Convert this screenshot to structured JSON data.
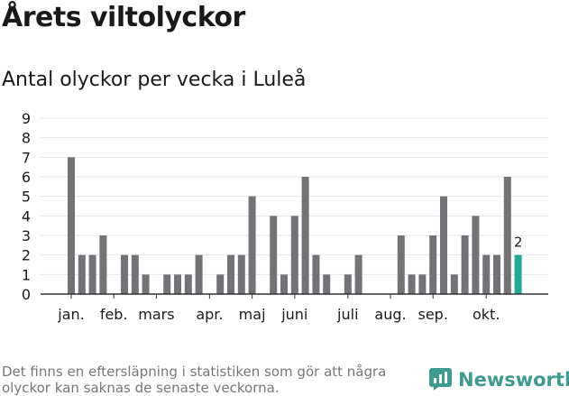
{
  "header": {
    "title": "Årets viltolyckor",
    "subtitle": "Antal olyckor per vecka i Luleå"
  },
  "chart_data": {
    "type": "bar",
    "title": "Årets viltolyckor",
    "subtitle": "Antal olyckor per vecka i Luleå",
    "xlabel": "",
    "ylabel": "",
    "ylim": [
      0,
      9
    ],
    "y_ticks": [
      0,
      1,
      2,
      3,
      4,
      5,
      6,
      7,
      8,
      9
    ],
    "grid": true,
    "values": [
      7,
      2,
      2,
      3,
      0,
      2,
      2,
      1,
      0,
      1,
      1,
      1,
      2,
      0,
      1,
      2,
      2,
      5,
      0,
      4,
      1,
      4,
      6,
      2,
      1,
      0,
      1,
      2,
      0,
      0,
      0,
      3,
      1,
      1,
      3,
      5,
      1,
      3,
      4,
      2,
      2,
      6,
      2
    ],
    "month_labels": [
      {
        "label": "jan.",
        "week": 1
      },
      {
        "label": "feb.",
        "week": 5
      },
      {
        "label": "mars",
        "week": 9
      },
      {
        "label": "apr.",
        "week": 14
      },
      {
        "label": "maj",
        "week": 18
      },
      {
        "label": "juni",
        "week": 22
      },
      {
        "label": "juli",
        "week": 27
      },
      {
        "label": "aug.",
        "week": 31
      },
      {
        "label": "sep.",
        "week": 35
      },
      {
        "label": "okt.",
        "week": 40
      }
    ],
    "highlight_index": 42,
    "highlight_label": "2",
    "colors": {
      "bar": "#737277",
      "highlight": "#20a898",
      "grid": "#e6e6e6",
      "axis": "#333333"
    }
  },
  "footer": {
    "note": "Det finns en eftersläpning i statistiken som gör att några olyckor kan saknas de senaste veckorna.",
    "brand": "Newsworthy",
    "brand_icon": "newsworthy-logo-icon",
    "brand_color": "#3d9b91"
  }
}
